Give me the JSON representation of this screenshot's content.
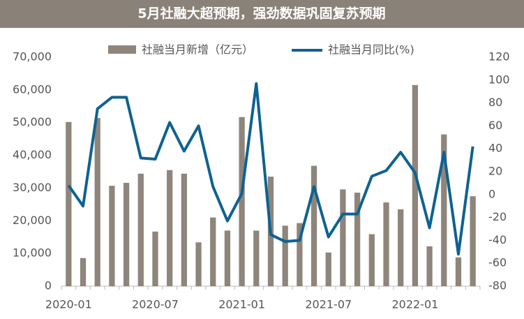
{
  "chart_data": {
    "type": "bar_line",
    "title": "5月社融大超预期，强劲数据巩固复苏预期",
    "categories": [
      "2020-01",
      null,
      null,
      null,
      null,
      null,
      "2020-07",
      null,
      null,
      null,
      null,
      null,
      "2021-01",
      null,
      null,
      null,
      null,
      null,
      "2021-07",
      null,
      null,
      null,
      null,
      null,
      "2022-01",
      null,
      null,
      null,
      null
    ],
    "series": [
      {
        "name": "社融当月新增（亿元）",
        "color": "#8e857b",
        "type": "bar",
        "axis": "y",
        "values": [
          50200,
          8600,
          51400,
          30700,
          31600,
          34400,
          16700,
          35500,
          34400,
          13400,
          21000,
          17000,
          51700,
          17000,
          33500,
          18500,
          19300,
          36800,
          10300,
          29600,
          28600,
          15900,
          25600,
          23500,
          61500,
          12200,
          46400,
          8800,
          27500
        ]
      },
      {
        "name": "社融当月同比(%)",
        "color": "#0e6291",
        "type": "line",
        "axis": "y2",
        "values": [
          8,
          -10,
          75,
          85,
          85,
          32,
          31,
          63,
          38,
          60,
          7,
          -23,
          1,
          97,
          -35,
          -41,
          -40,
          7,
          -37,
          -17,
          -17,
          16,
          21,
          37,
          19,
          -29,
          37,
          -52,
          42
        ]
      }
    ],
    "ylim": [
      0,
      70000
    ],
    "yticks": [
      0,
      {
        "value": 10000,
        "label": "10,000"
      },
      {
        "value": 20000,
        "label": "20,000"
      },
      {
        "value": 30000,
        "label": "30,000"
      },
      {
        "value": 40000,
        "label": "40,000"
      },
      {
        "value": 50000,
        "label": "50,000"
      },
      {
        "value": 60000,
        "label": "60,000"
      },
      {
        "value": 70000,
        "label": "70,000"
      }
    ],
    "y2lim": [
      -80,
      120
    ],
    "y2ticks": [
      -80,
      -60,
      -40,
      -20,
      0,
      20,
      40,
      60,
      80,
      100,
      120
    ],
    "legend": "top"
  }
}
